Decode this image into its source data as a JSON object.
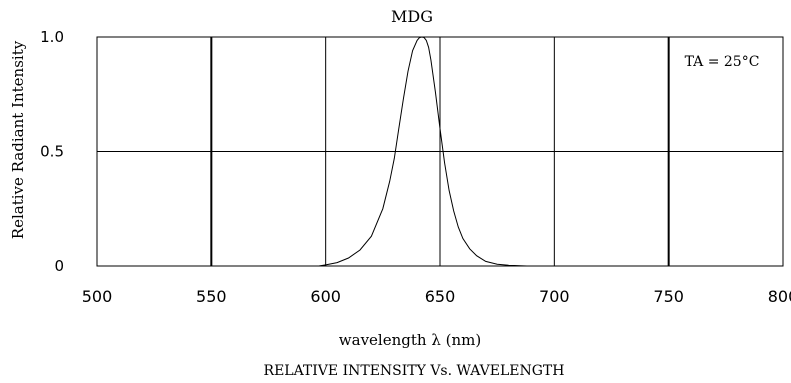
{
  "chart_data": {
    "type": "line",
    "title": "MDG",
    "xlabel": "wavelength λ  (nm)",
    "ylabel": "Relative  Radiant  Intensity",
    "caption": "RELATIVE  INTENSITY  Vs.  WAVELENGTH",
    "annotation": "TA = 25°C",
    "xlim": [
      500,
      800
    ],
    "ylim": [
      0,
      1.0
    ],
    "x_ticks": [
      500,
      550,
      600,
      650,
      700,
      750,
      800
    ],
    "y_ticks": [
      {
        "value": 0,
        "label": "0"
      },
      {
        "value": 0.5,
        "label": "0.5"
      },
      {
        "value": 1.0,
        "label": "1.0"
      }
    ],
    "grid": true,
    "series": [
      {
        "x": [
          597,
          600,
          605,
          610,
          615,
          620,
          625,
          628,
          630,
          632,
          634,
          636,
          638,
          640,
          641,
          642,
          643,
          644,
          645,
          646,
          648,
          650,
          652,
          654,
          656,
          658,
          660,
          663,
          666,
          670,
          675,
          680,
          685,
          688
        ],
        "y": [
          0.0,
          0.005,
          0.015,
          0.035,
          0.07,
          0.13,
          0.25,
          0.37,
          0.47,
          0.6,
          0.73,
          0.85,
          0.94,
          0.985,
          0.997,
          1.0,
          0.998,
          0.985,
          0.955,
          0.9,
          0.76,
          0.6,
          0.45,
          0.33,
          0.24,
          0.17,
          0.12,
          0.075,
          0.045,
          0.02,
          0.008,
          0.003,
          0.001,
          0.0
        ]
      }
    ],
    "colors": {
      "line": "#000000",
      "grid": "#000000",
      "background": "#ffffff"
    }
  }
}
